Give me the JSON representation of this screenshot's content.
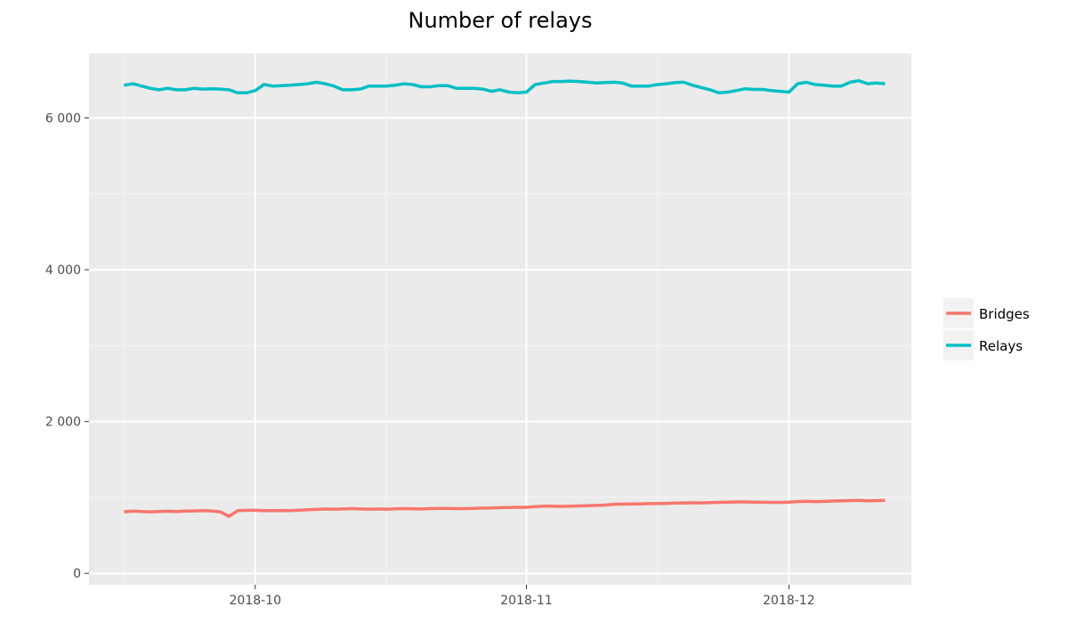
{
  "chart_data": {
    "type": "line",
    "title": "Number of relays",
    "xlabel": "",
    "ylabel": "",
    "x_type": "date",
    "xlim": [
      "2018-09-12",
      "2018-12-15"
    ],
    "ylim": [
      -150,
      6850
    ],
    "x_ticks": [
      {
        "date": "2018-10-01",
        "label": "2018-10"
      },
      {
        "date": "2018-11-01",
        "label": "2018-11"
      },
      {
        "date": "2018-12-01",
        "label": "2018-12"
      }
    ],
    "x_minor_ticks": [
      "2018-09-16",
      "2018-10-16",
      "2018-11-16",
      "2018-12-16"
    ],
    "y_ticks": [
      {
        "value": 0,
        "label": "0"
      },
      {
        "value": 2000,
        "label": "2 000"
      },
      {
        "value": 4000,
        "label": "4 000"
      },
      {
        "value": 6000,
        "label": "6 000"
      }
    ],
    "y_minor_ticks": [
      1000,
      3000,
      5000
    ],
    "grid": true,
    "legend_position": "right",
    "series": [
      {
        "name": "Relays",
        "color": "#00BFC4",
        "x": [
          "2018-09-16",
          "2018-09-17",
          "2018-09-18",
          "2018-09-19",
          "2018-09-20",
          "2018-09-21",
          "2018-09-22",
          "2018-09-23",
          "2018-09-24",
          "2018-09-25",
          "2018-09-26",
          "2018-09-27",
          "2018-09-28",
          "2018-09-29",
          "2018-09-30",
          "2018-10-01",
          "2018-10-02",
          "2018-10-03",
          "2018-10-04",
          "2018-10-05",
          "2018-10-06",
          "2018-10-07",
          "2018-10-08",
          "2018-10-09",
          "2018-10-10",
          "2018-10-11",
          "2018-10-12",
          "2018-10-13",
          "2018-10-14",
          "2018-10-15",
          "2018-10-16",
          "2018-10-17",
          "2018-10-18",
          "2018-10-19",
          "2018-10-20",
          "2018-10-21",
          "2018-10-22",
          "2018-10-23",
          "2018-10-24",
          "2018-10-25",
          "2018-10-26",
          "2018-10-27",
          "2018-10-28",
          "2018-10-29",
          "2018-10-30",
          "2018-10-31",
          "2018-11-01",
          "2018-11-02",
          "2018-11-03",
          "2018-11-04",
          "2018-11-05",
          "2018-11-06",
          "2018-11-07",
          "2018-11-08",
          "2018-11-09",
          "2018-11-10",
          "2018-11-11",
          "2018-11-12",
          "2018-11-13",
          "2018-11-14",
          "2018-11-15",
          "2018-11-16",
          "2018-11-17",
          "2018-11-18",
          "2018-11-19",
          "2018-11-20",
          "2018-11-21",
          "2018-11-22",
          "2018-11-23",
          "2018-11-24",
          "2018-11-25",
          "2018-11-26",
          "2018-11-27",
          "2018-11-28",
          "2018-11-29",
          "2018-11-30",
          "2018-12-01",
          "2018-12-02",
          "2018-12-03",
          "2018-12-04",
          "2018-12-05",
          "2018-12-06",
          "2018-12-07",
          "2018-12-08",
          "2018-12-09",
          "2018-12-10",
          "2018-12-11",
          "2018-12-12"
        ],
        "y": [
          6430,
          6450,
          6420,
          6390,
          6370,
          6390,
          6370,
          6370,
          6390,
          6380,
          6385,
          6380,
          6370,
          6330,
          6330,
          6360,
          6440,
          6420,
          6425,
          6430,
          6440,
          6450,
          6470,
          6450,
          6420,
          6370,
          6370,
          6380,
          6420,
          6420,
          6420,
          6430,
          6450,
          6440,
          6410,
          6410,
          6425,
          6425,
          6390,
          6390,
          6390,
          6380,
          6350,
          6370,
          6340,
          6330,
          6340,
          6440,
          6460,
          6480,
          6480,
          6485,
          6480,
          6470,
          6460,
          6465,
          6470,
          6460,
          6420,
          6420,
          6420,
          6440,
          6450,
          6465,
          6470,
          6430,
          6400,
          6370,
          6330,
          6340,
          6360,
          6385,
          6375,
          6375,
          6360,
          6350,
          6340,
          6450,
          6470,
          6440,
          6430,
          6420,
          6420,
          6470,
          6490,
          6450,
          6460,
          6450
        ]
      },
      {
        "name": "Bridges",
        "color": "#F8766D",
        "x": [
          "2018-09-16",
          "2018-09-17",
          "2018-09-18",
          "2018-09-19",
          "2018-09-20",
          "2018-09-21",
          "2018-09-22",
          "2018-09-23",
          "2018-09-24",
          "2018-09-25",
          "2018-09-26",
          "2018-09-27",
          "2018-09-28",
          "2018-09-29",
          "2018-09-30",
          "2018-10-01",
          "2018-10-02",
          "2018-10-03",
          "2018-10-04",
          "2018-10-05",
          "2018-10-06",
          "2018-10-07",
          "2018-10-08",
          "2018-10-09",
          "2018-10-10",
          "2018-10-11",
          "2018-10-12",
          "2018-10-13",
          "2018-10-14",
          "2018-10-15",
          "2018-10-16",
          "2018-10-17",
          "2018-10-18",
          "2018-10-19",
          "2018-10-20",
          "2018-10-21",
          "2018-10-22",
          "2018-10-23",
          "2018-10-24",
          "2018-10-25",
          "2018-10-26",
          "2018-10-27",
          "2018-10-28",
          "2018-10-29",
          "2018-10-30",
          "2018-10-31",
          "2018-11-01",
          "2018-11-02",
          "2018-11-03",
          "2018-11-04",
          "2018-11-05",
          "2018-11-06",
          "2018-11-07",
          "2018-11-08",
          "2018-11-09",
          "2018-11-10",
          "2018-11-11",
          "2018-11-12",
          "2018-11-13",
          "2018-11-14",
          "2018-11-15",
          "2018-11-16",
          "2018-11-17",
          "2018-11-18",
          "2018-11-19",
          "2018-11-20",
          "2018-11-21",
          "2018-11-22",
          "2018-11-23",
          "2018-11-24",
          "2018-11-25",
          "2018-11-26",
          "2018-11-27",
          "2018-11-28",
          "2018-11-29",
          "2018-11-30",
          "2018-12-01",
          "2018-12-02",
          "2018-12-03",
          "2018-12-04",
          "2018-12-05",
          "2018-12-06",
          "2018-12-07",
          "2018-12-08",
          "2018-12-09",
          "2018-12-10",
          "2018-12-11",
          "2018-12-12"
        ],
        "y": [
          810,
          820,
          815,
          810,
          815,
          818,
          815,
          820,
          822,
          825,
          822,
          810,
          750,
          825,
          830,
          830,
          825,
          825,
          828,
          825,
          832,
          838,
          842,
          848,
          845,
          848,
          852,
          848,
          845,
          848,
          845,
          850,
          852,
          850,
          848,
          852,
          855,
          855,
          852,
          852,
          855,
          860,
          862,
          865,
          868,
          870,
          870,
          880,
          885,
          885,
          882,
          885,
          888,
          892,
          895,
          900,
          910,
          912,
          915,
          915,
          918,
          920,
          922,
          925,
          928,
          930,
          928,
          932,
          935,
          938,
          940,
          940,
          938,
          936,
          935,
          935,
          938,
          945,
          950,
          945,
          948,
          952,
          955,
          958,
          960,
          955,
          958,
          962
        ]
      }
    ]
  }
}
